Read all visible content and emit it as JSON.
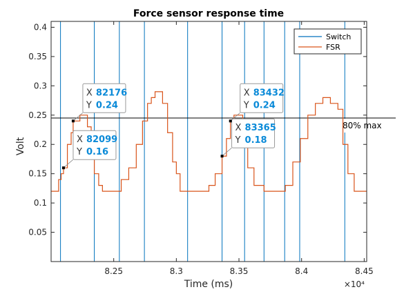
{
  "chart_data": {
    "type": "line",
    "title": "Force sensor response time",
    "xlabel": "Time (ms)",
    "ylabel": "Volt",
    "x_exponent": "×10⁴",
    "xlim": [
      82000,
      84520
    ],
    "ylim": [
      0,
      0.41
    ],
    "xticks": [
      82500,
      83000,
      83500,
      84000,
      84500
    ],
    "xtick_labels": [
      "8.25",
      "8.3",
      "8.35",
      "8.4",
      "8.45"
    ],
    "yticks": [
      0.05,
      0.1,
      0.15,
      0.2,
      0.25,
      0.3,
      0.35,
      0.4
    ],
    "ytick_labels": [
      "0.05",
      "0.1",
      "0.15",
      "0.2",
      "0.25",
      "0.3",
      "0.35",
      "0.4"
    ],
    "legend": {
      "position": "top-right",
      "entries": [
        "Switch",
        "FSR"
      ]
    },
    "colors": {
      "switch": "#0072BD",
      "fsr": "#D95319",
      "threshold": "#000000",
      "datatip_value": "#0a8ad8"
    },
    "series": [
      {
        "name": "Switch",
        "type": "vertical-lines",
        "x": [
          82075,
          82345,
          82545,
          82745,
          83090,
          83365,
          83545,
          83700,
          83865,
          83985,
          84345
        ]
      },
      {
        "name": "FSR",
        "points": [
          [
            82000,
            0.12
          ],
          [
            82040,
            0.12
          ],
          [
            82060,
            0.14
          ],
          [
            82080,
            0.15
          ],
          [
            82099,
            0.16
          ],
          [
            82130,
            0.2
          ],
          [
            82160,
            0.22
          ],
          [
            82176,
            0.24
          ],
          [
            82230,
            0.25
          ],
          [
            82260,
            0.25
          ],
          [
            82290,
            0.23
          ],
          [
            82320,
            0.18
          ],
          [
            82345,
            0.15
          ],
          [
            82380,
            0.13
          ],
          [
            82410,
            0.12
          ],
          [
            82500,
            0.12
          ],
          [
            82560,
            0.14
          ],
          [
            82620,
            0.16
          ],
          [
            82680,
            0.2
          ],
          [
            82730,
            0.24
          ],
          [
            82770,
            0.27
          ],
          [
            82800,
            0.28
          ],
          [
            82830,
            0.29
          ],
          [
            82860,
            0.29
          ],
          [
            82890,
            0.27
          ],
          [
            82930,
            0.22
          ],
          [
            82970,
            0.17
          ],
          [
            83000,
            0.15
          ],
          [
            83030,
            0.12
          ],
          [
            83100,
            0.12
          ],
          [
            83200,
            0.12
          ],
          [
            83260,
            0.13
          ],
          [
            83310,
            0.15
          ],
          [
            83365,
            0.18
          ],
          [
            83400,
            0.21
          ],
          [
            83432,
            0.24
          ],
          [
            83460,
            0.25
          ],
          [
            83500,
            0.25
          ],
          [
            83530,
            0.22
          ],
          [
            83570,
            0.16
          ],
          [
            83620,
            0.13
          ],
          [
            83700,
            0.12
          ],
          [
            83800,
            0.12
          ],
          [
            83870,
            0.13
          ],
          [
            83930,
            0.17
          ],
          [
            83990,
            0.21
          ],
          [
            84050,
            0.25
          ],
          [
            84110,
            0.27
          ],
          [
            84170,
            0.28
          ],
          [
            84230,
            0.27
          ],
          [
            84290,
            0.26
          ],
          [
            84330,
            0.2
          ],
          [
            84370,
            0.15
          ],
          [
            84420,
            0.12
          ],
          [
            84520,
            0.12
          ]
        ]
      }
    ],
    "threshold": {
      "y": 0.245,
      "label": "80% max"
    },
    "datatips": [
      {
        "x": 82099,
        "y": 0.16,
        "x_label": "82099",
        "y_label": "0.16",
        "side": "right"
      },
      {
        "x": 82176,
        "y": 0.24,
        "x_label": "82176",
        "y_label": "0.24",
        "side": "right"
      },
      {
        "x": 83365,
        "y": 0.18,
        "x_label": "83365",
        "y_label": "0.18",
        "side": "right"
      },
      {
        "x": 83432,
        "y": 0.24,
        "x_label": "83432",
        "y_label": "0.24",
        "side": "right"
      }
    ],
    "datatip_keys": {
      "x": "X",
      "y": "Y"
    },
    "grid": false
  }
}
